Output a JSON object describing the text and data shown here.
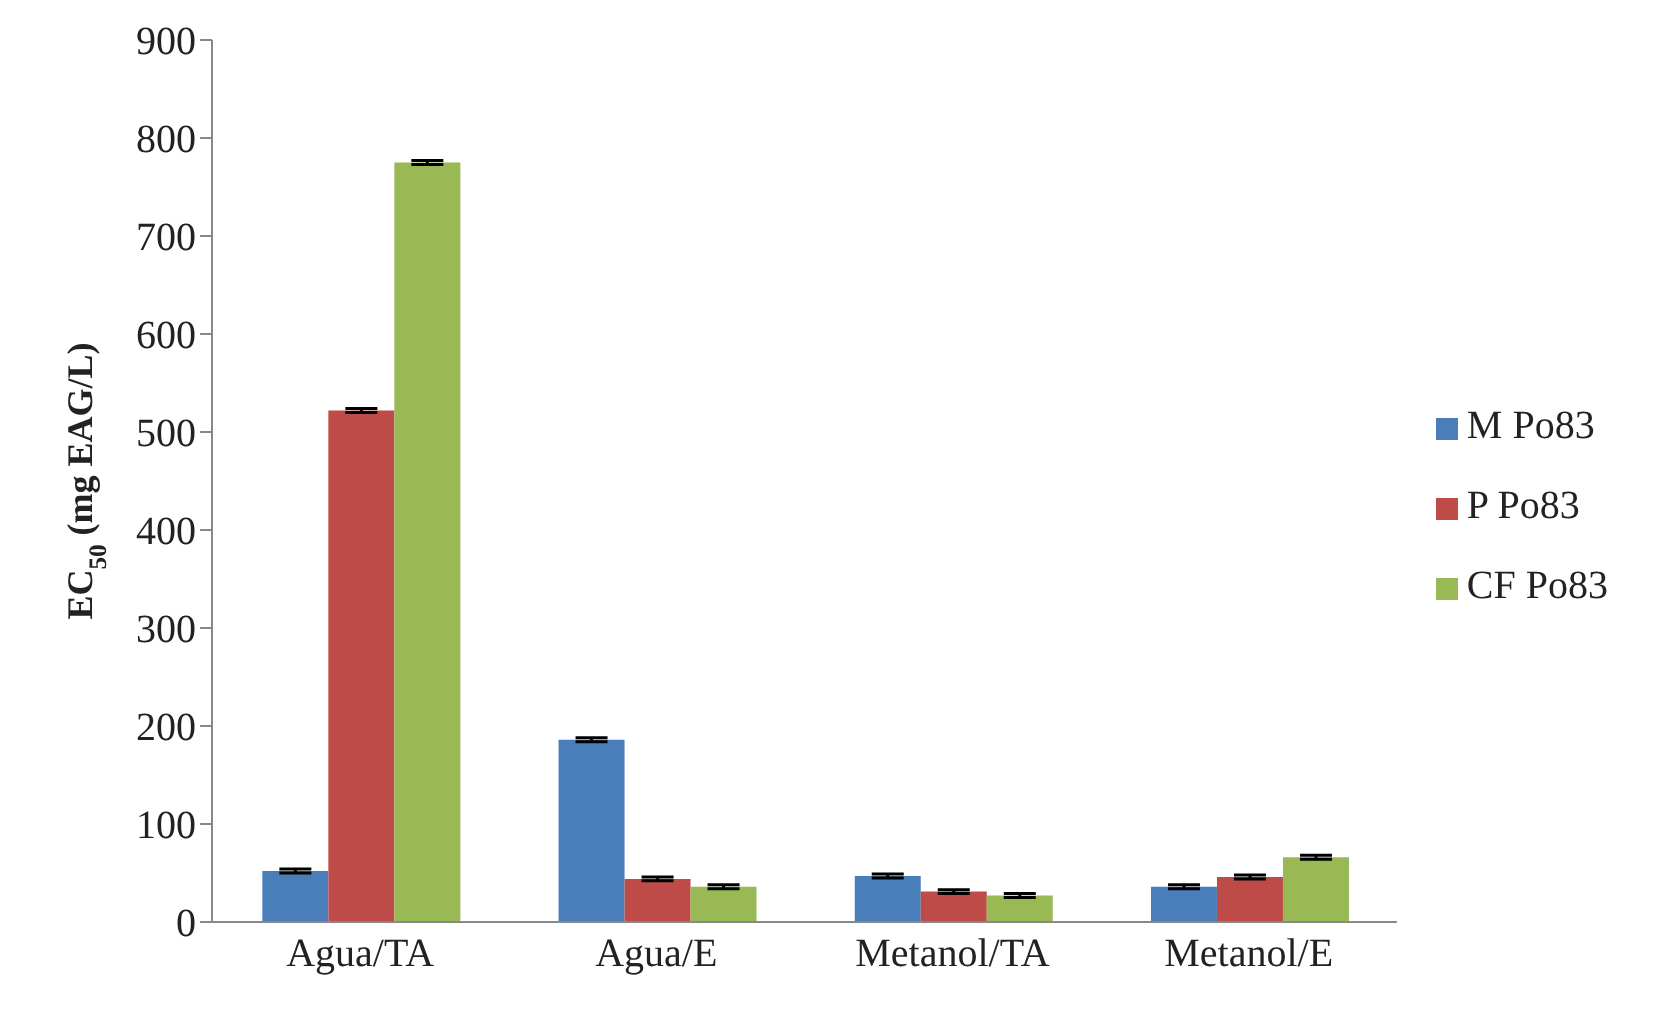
{
  "chart_data": {
    "type": "bar",
    "ylabel": "EC$_{50}$ (mg EAG/L)",
    "categories": [
      "Agua/TA",
      "Agua/E",
      "Metanol/TA",
      "Metanol/E"
    ],
    "series": [
      {
        "name": "M Po83",
        "color": "#4a7ebb",
        "values": [
          52,
          186,
          47,
          36
        ],
        "errors": [
          2,
          2,
          2,
          2
        ]
      },
      {
        "name": "P Po83",
        "color": "#be4b48",
        "values": [
          522,
          44,
          31,
          46
        ],
        "errors": [
          2,
          2,
          2,
          2
        ]
      },
      {
        "name": "CF Po83",
        "color": "#98b954",
        "values": [
          775,
          36,
          27,
          66
        ],
        "errors": [
          2,
          2,
          2,
          2
        ]
      }
    ],
    "ylim": [
      0,
      900
    ],
    "yticks": [
      0,
      100,
      200,
      300,
      400,
      500,
      600,
      700,
      800,
      900
    ],
    "grid": false,
    "legend": "right"
  }
}
